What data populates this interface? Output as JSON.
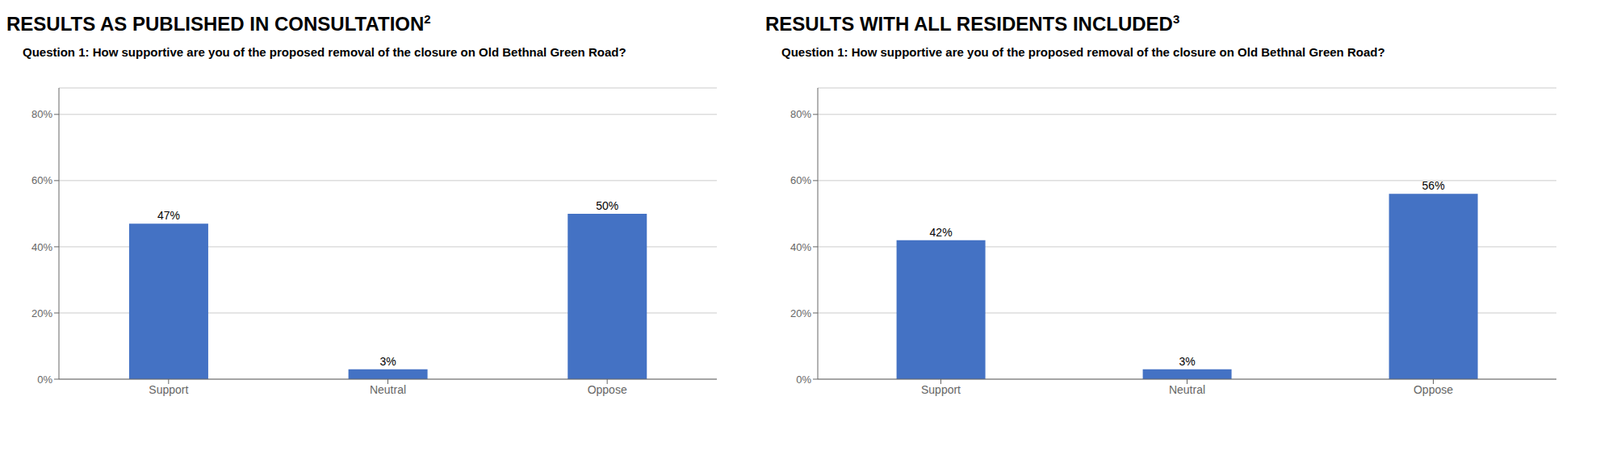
{
  "chart_data": [
    {
      "type": "bar",
      "title": "RESULTS AS PUBLISHED IN CONSULTATION",
      "annotations": [
        "2"
      ],
      "subtitle": "Question 1: How supportive are you of the proposed removal of the closure on Old Bethnal Green Road?",
      "categories": [
        "Support",
        "Neutral",
        "Oppose"
      ],
      "values": [
        47,
        3,
        50
      ],
      "value_labels": [
        "47%",
        "3%",
        "50%"
      ],
      "color": "#4472C4",
      "ylim": [
        0,
        88
      ],
      "yticks": [
        {
          "value": 0,
          "label": "0%"
        },
        {
          "value": 20,
          "label": "20%"
        },
        {
          "value": 40,
          "label": "40%"
        },
        {
          "value": 60,
          "label": "60%"
        },
        {
          "value": 80,
          "label": "80%"
        }
      ],
      "grid": true,
      "data_labels": true
    },
    {
      "type": "bar",
      "title": "RESULTS WITH ALL RESIDENTS INCLUDED",
      "annotations": [
        "3"
      ],
      "subtitle": "Question 1: How supportive are you of the proposed removal of the closure on Old Bethnal Green Road?",
      "categories": [
        "Support",
        "Neutral",
        "Oppose"
      ],
      "values": [
        42,
        3,
        56
      ],
      "value_labels": [
        "42%",
        "3%",
        "56%"
      ],
      "color": "#4472C4",
      "ylim": [
        0,
        88
      ],
      "yticks": [
        {
          "value": 0,
          "label": "0%"
        },
        {
          "value": 20,
          "label": "20%"
        },
        {
          "value": 40,
          "label": "40%"
        },
        {
          "value": 60,
          "label": "60%"
        },
        {
          "value": 80,
          "label": "80%"
        }
      ],
      "grid": true,
      "data_labels": true
    }
  ]
}
